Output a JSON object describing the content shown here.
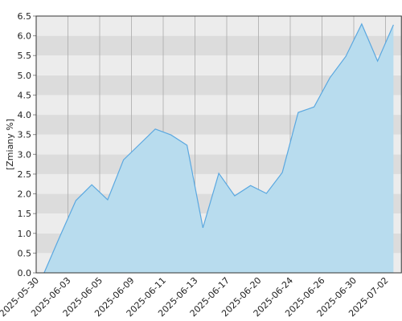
{
  "chart_data": {
    "type": "area",
    "y_label": "[Zmiany %]",
    "categories": [
      "2025-05-30",
      null,
      "2025-06-03",
      null,
      "2025-06-05",
      null,
      "2025-06-09",
      null,
      "2025-06-11",
      null,
      "2025-06-13",
      null,
      "2025-06-17",
      null,
      "2025-06-20",
      null,
      "2025-06-24",
      null,
      "2025-06-26",
      null,
      "2025-06-30",
      null,
      "2025-07-02"
    ],
    "values": [
      0,
      0.93,
      1.83,
      2.23,
      1.85,
      2.86,
      3.25,
      3.64,
      3.49,
      3.23,
      1.14,
      2.52,
      1.95,
      2.21,
      2.01,
      2.54,
      4.06,
      4.2,
      4.94,
      5.48,
      6.3,
      5.36,
      6.28
    ],
    "color": "#5ba8e0",
    "fill": "#b8dcee",
    "ylim": [
      0,
      6.5
    ],
    "yticks": [
      {
        "value": 0,
        "label": "0.0"
      },
      {
        "value": 0.5,
        "label": "0.5"
      },
      {
        "value": 1,
        "label": "1.0"
      },
      {
        "value": 1.5,
        "label": "1.5"
      },
      {
        "value": 2,
        "label": "2.0"
      },
      {
        "value": 2.5,
        "label": "2.5"
      },
      {
        "value": 3,
        "label": "3.0"
      },
      {
        "value": 3.5,
        "label": "3.5"
      },
      {
        "value": 4,
        "label": "4.0"
      },
      {
        "value": 4.5,
        "label": "4.5"
      },
      {
        "value": 5,
        "label": "5.0"
      },
      {
        "value": 5.5,
        "label": "5.5"
      },
      {
        "value": 6,
        "label": "6.0"
      },
      {
        "value": 6.5,
        "label": "6.5"
      }
    ],
    "grid": true
  }
}
